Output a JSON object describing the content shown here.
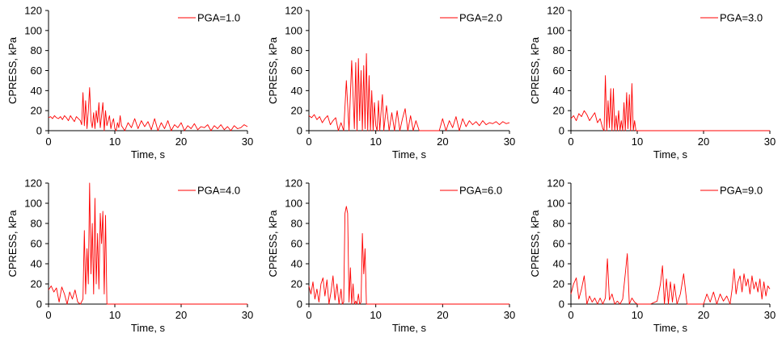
{
  "chart_data": [
    {
      "type": "line",
      "legend": "PGA=1.0",
      "legend_position": "top-right",
      "xlabel": "Time, s",
      "ylabel": "CPRESS, kPa",
      "xlim": [
        0,
        30
      ],
      "ylim": [
        0,
        120
      ],
      "xticks": [
        "0",
        "10",
        "20",
        "30"
      ],
      "yticks": [
        "0",
        "20",
        "40",
        "60",
        "80",
        "100",
        "120"
      ],
      "grid": false,
      "color": "#ff0000",
      "x": [
        0,
        0.3,
        0.6,
        0.9,
        1.2,
        1.5,
        1.8,
        2.1,
        2.4,
        2.7,
        3.0,
        3.3,
        3.6,
        3.9,
        4.2,
        4.5,
        4.8,
        5.0,
        5.2,
        5.4,
        5.6,
        5.8,
        6.0,
        6.2,
        6.4,
        6.6,
        6.8,
        7.0,
        7.2,
        7.4,
        7.6,
        7.8,
        8.0,
        8.2,
        8.4,
        8.6,
        8.8,
        9.0,
        9.2,
        9.4,
        9.6,
        9.8,
        10.0,
        10.2,
        10.4,
        10.6,
        10.8,
        11.0,
        11.5,
        12.0,
        12.5,
        13.0,
        13.5,
        14.0,
        14.5,
        15.0,
        15.5,
        16.0,
        16.5,
        17.0,
        17.5,
        18.0,
        18.5,
        19.0,
        19.5,
        20.0,
        20.5,
        21.0,
        21.5,
        22.0,
        22.5,
        23.0,
        23.5,
        24.0,
        24.5,
        25.0,
        25.5,
        26.0,
        26.5,
        27.0,
        27.5,
        28.0,
        28.5,
        29.0,
        29.5,
        30.0
      ],
      "y": [
        13,
        14,
        12,
        15,
        13,
        12,
        14,
        11,
        15,
        13,
        10,
        15,
        12,
        9,
        14,
        12,
        10,
        6,
        38,
        5,
        30,
        2,
        20,
        43,
        10,
        3,
        18,
        2,
        20,
        8,
        28,
        3,
        15,
        28,
        0,
        20,
        5,
        10,
        15,
        2,
        8,
        12,
        2,
        0,
        8,
        3,
        15,
        5,
        0,
        8,
        3,
        12,
        2,
        10,
        4,
        9,
        1,
        12,
        0,
        8,
        2,
        10,
        0,
        6,
        3,
        8,
        0,
        5,
        2,
        7,
        1,
        4,
        3,
        6,
        0,
        5,
        2,
        6,
        1,
        4,
        0,
        5,
        2,
        3,
        6,
        4
      ]
    },
    {
      "type": "line",
      "legend": "PGA=2.0",
      "legend_position": "top-right",
      "xlabel": "Time, s",
      "ylabel": "CPRESS, kPa",
      "xlim": [
        0,
        30
      ],
      "ylim": [
        0,
        120
      ],
      "xticks": [
        "0",
        "10",
        "20",
        "30"
      ],
      "yticks": [
        "0",
        "20",
        "40",
        "60",
        "80",
        "100",
        "120"
      ],
      "grid": false,
      "color": "#ff0000",
      "x": [
        0,
        0.4,
        0.8,
        1.2,
        1.6,
        2.0,
        2.4,
        2.8,
        3.2,
        3.6,
        4.0,
        4.4,
        4.8,
        5.2,
        5.6,
        6.0,
        6.4,
        6.8,
        7.0,
        7.2,
        7.4,
        7.6,
        7.8,
        8.0,
        8.2,
        8.4,
        8.6,
        8.8,
        9.0,
        9.2,
        9.4,
        9.6,
        9.8,
        10.0,
        10.2,
        10.4,
        10.6,
        10.8,
        11.0,
        11.2,
        11.6,
        12.0,
        12.4,
        12.8,
        13.2,
        13.6,
        14.0,
        14.4,
        14.8,
        15.2,
        15.6,
        16.0,
        16.5,
        17.0,
        17.5,
        18.0,
        18.5,
        19.0,
        19.5,
        20.0,
        20.5,
        21.0,
        21.5,
        22.0,
        22.5,
        23.0,
        23.5,
        24.0,
        24.5,
        25.0,
        25.5,
        26.0,
        26.5,
        27.0,
        27.5,
        28.0,
        28.5,
        29.0,
        29.5,
        30.0
      ],
      "y": [
        15,
        13,
        16,
        11,
        14,
        8,
        12,
        15,
        6,
        10,
        13,
        0,
        8,
        0,
        50,
        0,
        70,
        2,
        68,
        0,
        72,
        10,
        60,
        0,
        65,
        2,
        77,
        0,
        55,
        0,
        40,
        0,
        28,
        5,
        0,
        30,
        0,
        20,
        36,
        0,
        25,
        0,
        18,
        0,
        20,
        0,
        12,
        22,
        0,
        15,
        0,
        10,
        0,
        0,
        0,
        0,
        0,
        0,
        0,
        12,
        0,
        10,
        3,
        14,
        0,
        12,
        4,
        10,
        6,
        9,
        5,
        10,
        6,
        8,
        7,
        9,
        6,
        9,
        7,
        8
      ]
    },
    {
      "type": "line",
      "legend": "PGA=3.0",
      "legend_position": "top-right",
      "xlabel": "Time, s",
      "ylabel": "CPRESS, kPa",
      "xlim": [
        0,
        30
      ],
      "ylim": [
        0,
        120
      ],
      "xticks": [
        "0",
        "10",
        "20",
        "30"
      ],
      "yticks": [
        "0",
        "20",
        "40",
        "60",
        "80",
        "100",
        "120"
      ],
      "grid": false,
      "color": "#ff0000",
      "x": [
        0,
        0.4,
        0.8,
        1.2,
        1.6,
        2.0,
        2.4,
        2.8,
        3.2,
        3.6,
        4.0,
        4.4,
        4.8,
        5.0,
        5.2,
        5.4,
        5.6,
        5.8,
        6.0,
        6.2,
        6.4,
        6.6,
        6.8,
        7.0,
        7.2,
        7.4,
        7.6,
        7.8,
        8.0,
        8.2,
        8.4,
        8.6,
        8.8,
        9.0,
        9.2,
        9.4,
        9.6,
        9.8,
        10.0,
        10.2,
        11.0,
        12.0,
        14.0,
        16.0,
        18.0,
        20.0,
        22.0,
        24.0,
        26.0,
        28.0,
        30.0
      ],
      "y": [
        12,
        15,
        10,
        17,
        14,
        20,
        16,
        10,
        14,
        18,
        8,
        12,
        2,
        0,
        55,
        0,
        30,
        3,
        42,
        0,
        42,
        0,
        15,
        0,
        20,
        0,
        10,
        0,
        28,
        0,
        38,
        2,
        36,
        0,
        47,
        0,
        10,
        0,
        0,
        0,
        0,
        0,
        0,
        0,
        0,
        0,
        0,
        0,
        0,
        0,
        0
      ]
    },
    {
      "type": "line",
      "legend": "PGA=4.0",
      "legend_position": "top-right",
      "xlabel": "Time, s",
      "ylabel": "CPRESS, kPa",
      "xlim": [
        0,
        30
      ],
      "ylim": [
        0,
        120
      ],
      "xticks": [
        "0",
        "10",
        "20",
        "30"
      ],
      "yticks": [
        "0",
        "20",
        "40",
        "60",
        "80",
        "100",
        "120"
      ],
      "grid": false,
      "color": "#ff0000",
      "x": [
        0,
        0.4,
        0.8,
        1.2,
        1.6,
        2.0,
        2.4,
        2.8,
        3.2,
        3.6,
        4.0,
        4.4,
        4.8,
        5.2,
        5.4,
        5.6,
        5.8,
        6.0,
        6.2,
        6.4,
        6.6,
        6.8,
        7.0,
        7.2,
        7.4,
        7.6,
        7.8,
        8.0,
        8.2,
        8.4,
        8.6,
        8.8,
        9.0,
        10.0,
        12.0,
        14.0,
        16.0,
        18.0,
        20.0,
        22.0,
        24.0,
        26.0,
        28.0,
        30.0
      ],
      "y": [
        14,
        18,
        12,
        16,
        2,
        17,
        10,
        0,
        12,
        5,
        14,
        2,
        0,
        5,
        73,
        10,
        55,
        20,
        120,
        30,
        80,
        10,
        105,
        20,
        70,
        15,
        90,
        60,
        92,
        10,
        88,
        0,
        0,
        0,
        0,
        0,
        0,
        0,
        0,
        0,
        0,
        0,
        0,
        0
      ]
    },
    {
      "type": "line",
      "legend": "PGA=6.0",
      "legend_position": "top-right",
      "xlabel": "Time, s",
      "ylabel": "CPRESS, kPa",
      "xlim": [
        0,
        30
      ],
      "ylim": [
        0,
        120
      ],
      "xticks": [
        "0",
        "10",
        "20",
        "30"
      ],
      "yticks": [
        "0",
        "20",
        "40",
        "60",
        "80",
        "100",
        "120"
      ],
      "grid": false,
      "color": "#ff0000",
      "x": [
        0,
        0.3,
        0.6,
        0.9,
        1.2,
        1.5,
        1.8,
        2.1,
        2.4,
        2.7,
        3.0,
        3.3,
        3.6,
        3.9,
        4.2,
        4.5,
        4.8,
        5.0,
        5.2,
        5.4,
        5.6,
        5.8,
        6.0,
        6.2,
        6.4,
        6.6,
        6.8,
        7.0,
        7.2,
        7.4,
        7.6,
        7.8,
        8.0,
        8.2,
        8.4,
        8.6,
        8.8,
        9.0,
        10.0,
        12.0,
        15.0,
        20.0,
        25.0,
        30.0
      ],
      "y": [
        18,
        10,
        22,
        5,
        15,
        2,
        20,
        26,
        8,
        24,
        0,
        12,
        28,
        4,
        20,
        0,
        15,
        0,
        2,
        90,
        97,
        90,
        2,
        36,
        0,
        20,
        0,
        3,
        0,
        10,
        0,
        2,
        70,
        30,
        55,
        0,
        0,
        0,
        0,
        0,
        0,
        0,
        0,
        0
      ]
    },
    {
      "type": "line",
      "legend": "PGA=9.0",
      "legend_position": "top-right",
      "xlabel": "Time, s",
      "ylabel": "CPRESS, kPa",
      "xlim": [
        0,
        30
      ],
      "ylim": [
        0,
        120
      ],
      "xticks": [
        "0",
        "10",
        "20",
        "30"
      ],
      "yticks": [
        "0",
        "20",
        "40",
        "60",
        "80",
        "100",
        "120"
      ],
      "grid": false,
      "color": "#ff0000",
      "x": [
        0,
        0.4,
        0.8,
        1.2,
        1.6,
        2.0,
        2.4,
        2.8,
        3.2,
        3.6,
        4.0,
        4.4,
        4.8,
        5.2,
        5.5,
        5.8,
        6.2,
        6.6,
        7.0,
        7.4,
        7.8,
        8.2,
        8.5,
        8.8,
        9.2,
        9.6,
        10.0,
        11.0,
        12.0,
        13.0,
        13.5,
        13.8,
        14.1,
        14.4,
        14.7,
        15.0,
        15.3,
        15.6,
        16.0,
        16.5,
        17.0,
        17.5,
        18.0,
        19.0,
        20.0,
        20.5,
        21.0,
        21.5,
        22.0,
        22.5,
        23.0,
        23.5,
        24.0,
        24.3,
        24.6,
        24.9,
        25.2,
        25.5,
        25.8,
        26.1,
        26.4,
        26.7,
        27.0,
        27.3,
        27.6,
        27.9,
        28.2,
        28.5,
        28.8,
        29.1,
        29.4,
        29.7,
        30.0
      ],
      "y": [
        10,
        20,
        26,
        5,
        15,
        28,
        0,
        8,
        2,
        6,
        0,
        6,
        0,
        6,
        45,
        4,
        10,
        0,
        3,
        0,
        5,
        30,
        50,
        0,
        6,
        2,
        0,
        0,
        0,
        3,
        20,
        38,
        0,
        25,
        0,
        22,
        2,
        20,
        0,
        10,
        30,
        0,
        0,
        0,
        0,
        10,
        2,
        12,
        0,
        10,
        3,
        8,
        0,
        15,
        35,
        10,
        22,
        28,
        12,
        30,
        18,
        25,
        10,
        28,
        15,
        22,
        12,
        25,
        5,
        22,
        8,
        18,
        15
      ]
    }
  ]
}
